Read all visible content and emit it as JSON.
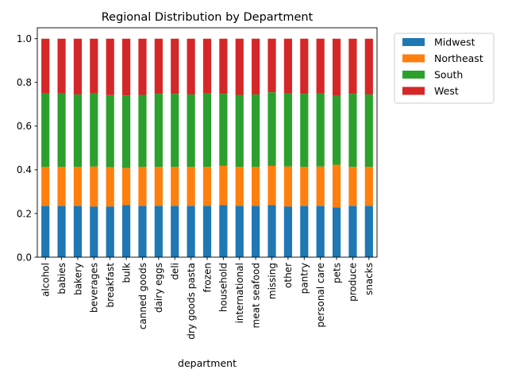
{
  "chart_data": {
    "type": "bar",
    "stacked": true,
    "title": "Regional Distribution by Department",
    "xlabel": "department",
    "ylabel": "",
    "ylim": [
      0,
      1.05
    ],
    "yticks": [
      "0.0",
      "0.2",
      "0.4",
      "0.6",
      "0.8",
      "1.0"
    ],
    "legend_position": "outside-top-right",
    "grid": false,
    "categories": [
      "alcohol",
      "babies",
      "bakery",
      "beverages",
      "breakfast",
      "bulk",
      "canned goods",
      "dairy eggs",
      "deli",
      "dry goods pasta",
      "frozen",
      "household",
      "international",
      "meat seafood",
      "missing",
      "other",
      "pantry",
      "personal care",
      "pets",
      "produce",
      "snacks"
    ],
    "series": [
      {
        "name": "Midwest",
        "color": "#1f77b4",
        "values": [
          0.235,
          0.235,
          0.235,
          0.232,
          0.232,
          0.238,
          0.235,
          0.235,
          0.235,
          0.235,
          0.235,
          0.238,
          0.235,
          0.235,
          0.238,
          0.232,
          0.235,
          0.235,
          0.228,
          0.235,
          0.235
        ]
      },
      {
        "name": "Northeast",
        "color": "#ff7f0e",
        "values": [
          0.178,
          0.178,
          0.178,
          0.183,
          0.18,
          0.17,
          0.178,
          0.178,
          0.178,
          0.178,
          0.178,
          0.18,
          0.178,
          0.178,
          0.18,
          0.183,
          0.178,
          0.18,
          0.195,
          0.178,
          0.178
        ]
      },
      {
        "name": "South",
        "color": "#2ca02c",
        "values": [
          0.337,
          0.337,
          0.332,
          0.335,
          0.33,
          0.332,
          0.33,
          0.335,
          0.335,
          0.332,
          0.337,
          0.33,
          0.33,
          0.332,
          0.337,
          0.335,
          0.335,
          0.335,
          0.315,
          0.335,
          0.332
        ]
      },
      {
        "name": "West",
        "color": "#d62728",
        "values": [
          0.25,
          0.25,
          0.255,
          0.25,
          0.258,
          0.26,
          0.257,
          0.252,
          0.252,
          0.255,
          0.25,
          0.252,
          0.257,
          0.255,
          0.245,
          0.25,
          0.252,
          0.25,
          0.262,
          0.252,
          0.255
        ]
      }
    ]
  }
}
